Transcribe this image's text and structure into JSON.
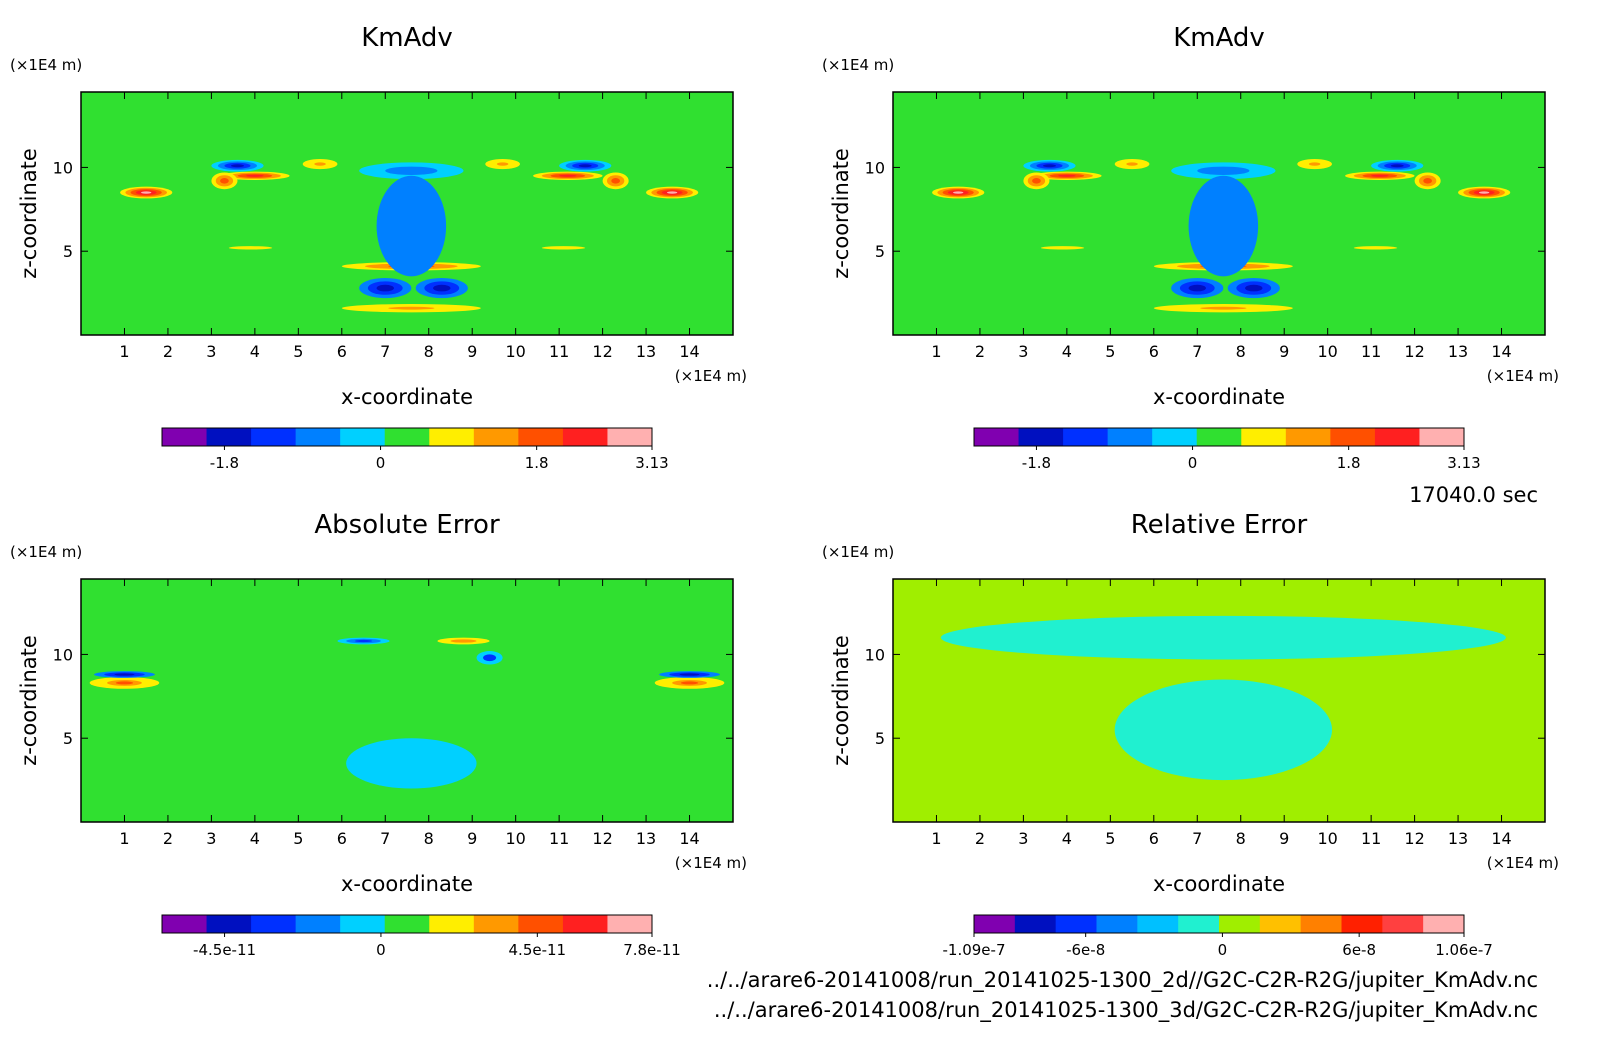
{
  "chart_data": [
    {
      "type": "heatmap",
      "title": "KmAdv",
      "xlabel": "x-coordinate",
      "ylabel": "z-coordinate",
      "x_unit": "(×1E4 m)",
      "y_unit": "(×1E4 m)",
      "xlim": [
        0,
        15
      ],
      "ylim": [
        0,
        14.5
      ],
      "x_ticks": [
        "1",
        "2",
        "3",
        "4",
        "5",
        "6",
        "7",
        "8",
        "9",
        "10",
        "11",
        "12",
        "13",
        "14"
      ],
      "y_ticks": [
        "5",
        "10"
      ],
      "colorbar": {
        "colors": [
          "#8000b0",
          "#0010c0",
          "#0030ff",
          "#0080ff",
          "#00d0ff",
          "#30e030",
          "#ffee00",
          "#ff9900",
          "#ff5000",
          "#ff2020",
          "#ffb0b0"
        ],
        "labels": [
          "-1.8",
          "0",
          "1.8",
          "3.13"
        ],
        "label_values": [
          -1.8,
          0,
          1.8,
          3.13
        ],
        "vmin": -2.52,
        "vmax": 3.13
      },
      "background_value": 0.1,
      "features": [
        {
          "x": 7.0,
          "z": 2.8,
          "value": -1.6,
          "rx": 0.6,
          "rz": 0.6
        },
        {
          "x": 8.3,
          "z": 2.8,
          "value": -1.6,
          "rx": 0.6,
          "rz": 0.6
        },
        {
          "x": 7.6,
          "z": 4.1,
          "value": 1.8,
          "rx": 1.6,
          "rz": 0.25
        },
        {
          "x": 7.6,
          "z": 1.6,
          "value": 1.5,
          "rx": 1.6,
          "rz": 0.25
        },
        {
          "x": 1.5,
          "z": 8.5,
          "value": 2.8,
          "rx": 0.6,
          "rz": 0.35
        },
        {
          "x": 13.6,
          "z": 8.5,
          "value": 2.8,
          "rx": 0.6,
          "rz": 0.35
        },
        {
          "x": 4.0,
          "z": 9.5,
          "value": 2.4,
          "rx": 0.8,
          "rz": 0.25
        },
        {
          "x": 11.2,
          "z": 9.5,
          "value": 2.4,
          "rx": 0.8,
          "rz": 0.25
        },
        {
          "x": 3.3,
          "z": 9.2,
          "value": 1.6,
          "rx": 0.3,
          "rz": 0.5
        },
        {
          "x": 12.3,
          "z": 9.2,
          "value": 1.6,
          "rx": 0.3,
          "rz": 0.5
        },
        {
          "x": 5.5,
          "z": 10.2,
          "value": 1.5,
          "rx": 0.4,
          "rz": 0.3
        },
        {
          "x": 9.7,
          "z": 10.2,
          "value": 1.5,
          "rx": 0.4,
          "rz": 0.3
        },
        {
          "x": 3.6,
          "z": 10.1,
          "value": -1.7,
          "rx": 0.6,
          "rz": 0.35
        },
        {
          "x": 11.6,
          "z": 10.1,
          "value": -1.7,
          "rx": 0.6,
          "rz": 0.35
        },
        {
          "x": 7.6,
          "z": 9.8,
          "value": -0.9,
          "rx": 1.2,
          "rz": 0.5
        },
        {
          "x": 7.6,
          "z": 6.5,
          "value": -0.6,
          "rx": 0.8,
          "rz": 3.0
        },
        {
          "x": 3.9,
          "z": 5.2,
          "value": 1.0,
          "rx": 1.0,
          "rz": 0.2
        },
        {
          "x": 11.1,
          "z": 5.2,
          "value": 1.0,
          "rx": 1.0,
          "rz": 0.2
        }
      ]
    },
    {
      "type": "heatmap",
      "title": "KmAdv",
      "xlabel": "x-coordinate",
      "ylabel": "z-coordinate",
      "x_unit": "(×1E4 m)",
      "y_unit": "(×1E4 m)",
      "xlim": [
        0,
        15
      ],
      "ylim": [
        0,
        14.5
      ],
      "x_ticks": [
        "1",
        "2",
        "3",
        "4",
        "5",
        "6",
        "7",
        "8",
        "9",
        "10",
        "11",
        "12",
        "13",
        "14"
      ],
      "y_ticks": [
        "5",
        "10"
      ],
      "colorbar": {
        "colors": [
          "#8000b0",
          "#0010c0",
          "#0030ff",
          "#0080ff",
          "#00d0ff",
          "#30e030",
          "#ffee00",
          "#ff9900",
          "#ff5000",
          "#ff2020",
          "#ffb0b0"
        ],
        "labels": [
          "-1.8",
          "0",
          "1.8",
          "3.13"
        ],
        "label_values": [
          -1.8,
          0,
          1.8,
          3.13
        ],
        "vmin": -2.52,
        "vmax": 3.13
      },
      "background_value": 0.1,
      "features": [
        {
          "x": 7.0,
          "z": 2.8,
          "value": -1.6,
          "rx": 0.6,
          "rz": 0.6
        },
        {
          "x": 8.3,
          "z": 2.8,
          "value": -1.6,
          "rx": 0.6,
          "rz": 0.6
        },
        {
          "x": 7.6,
          "z": 4.1,
          "value": 1.8,
          "rx": 1.6,
          "rz": 0.25
        },
        {
          "x": 7.6,
          "z": 1.6,
          "value": 1.5,
          "rx": 1.6,
          "rz": 0.25
        },
        {
          "x": 1.5,
          "z": 8.5,
          "value": 2.8,
          "rx": 0.6,
          "rz": 0.35
        },
        {
          "x": 13.6,
          "z": 8.5,
          "value": 2.8,
          "rx": 0.6,
          "rz": 0.35
        },
        {
          "x": 4.0,
          "z": 9.5,
          "value": 2.4,
          "rx": 0.8,
          "rz": 0.25
        },
        {
          "x": 11.2,
          "z": 9.5,
          "value": 2.4,
          "rx": 0.8,
          "rz": 0.25
        },
        {
          "x": 3.3,
          "z": 9.2,
          "value": 1.6,
          "rx": 0.3,
          "rz": 0.5
        },
        {
          "x": 12.3,
          "z": 9.2,
          "value": 1.6,
          "rx": 0.3,
          "rz": 0.5
        },
        {
          "x": 5.5,
          "z": 10.2,
          "value": 1.5,
          "rx": 0.4,
          "rz": 0.3
        },
        {
          "x": 9.7,
          "z": 10.2,
          "value": 1.5,
          "rx": 0.4,
          "rz": 0.3
        },
        {
          "x": 3.6,
          "z": 10.1,
          "value": -1.7,
          "rx": 0.6,
          "rz": 0.35
        },
        {
          "x": 11.6,
          "z": 10.1,
          "value": -1.7,
          "rx": 0.6,
          "rz": 0.35
        },
        {
          "x": 7.6,
          "z": 9.8,
          "value": -0.9,
          "rx": 1.2,
          "rz": 0.5
        },
        {
          "x": 7.6,
          "z": 6.5,
          "value": -0.6,
          "rx": 0.8,
          "rz": 3.0
        },
        {
          "x": 3.9,
          "z": 5.2,
          "value": 1.0,
          "rx": 1.0,
          "rz": 0.2
        },
        {
          "x": 11.1,
          "z": 5.2,
          "value": 1.0,
          "rx": 1.0,
          "rz": 0.2
        }
      ]
    },
    {
      "type": "heatmap",
      "title": "Absolute Error",
      "xlabel": "x-coordinate",
      "ylabel": "z-coordinate",
      "x_unit": "(×1E4 m)",
      "y_unit": "(×1E4 m)",
      "xlim": [
        0,
        15
      ],
      "ylim": [
        0,
        14.5
      ],
      "x_ticks": [
        "1",
        "2",
        "3",
        "4",
        "5",
        "6",
        "7",
        "8",
        "9",
        "10",
        "11",
        "12",
        "13",
        "14"
      ],
      "y_ticks": [
        "5",
        "10"
      ],
      "colorbar": {
        "colors": [
          "#8000b0",
          "#0010c0",
          "#0030ff",
          "#0080ff",
          "#00d0ff",
          "#30e030",
          "#ffee00",
          "#ff9900",
          "#ff5000",
          "#ff2020",
          "#ffb0b0"
        ],
        "labels": [
          "-4.5e-11",
          "0",
          "4.5e-11",
          "7.8e-11"
        ],
        "label_values": [
          -4.5e-11,
          0,
          4.5e-11,
          7.8e-11
        ],
        "vmin": -6.3e-11,
        "vmax": 7.8e-11
      },
      "background_value": 2e-12,
      "features": [
        {
          "x": 1.0,
          "z": 8.3,
          "value": 5e-11,
          "rx": 0.8,
          "rz": 0.35
        },
        {
          "x": 14.0,
          "z": 8.3,
          "value": 5e-11,
          "rx": 0.8,
          "rz": 0.35
        },
        {
          "x": 1.0,
          "z": 8.8,
          "value": -4e-11,
          "rx": 0.7,
          "rz": 0.2
        },
        {
          "x": 14.0,
          "z": 8.8,
          "value": -4e-11,
          "rx": 0.7,
          "rz": 0.2
        },
        {
          "x": 6.5,
          "z": 10.8,
          "value": -3.5e-11,
          "rx": 0.6,
          "rz": 0.2
        },
        {
          "x": 8.8,
          "z": 10.8,
          "value": 3e-11,
          "rx": 0.6,
          "rz": 0.2
        },
        {
          "x": 9.4,
          "z": 9.8,
          "value": -2.5e-11,
          "rx": 0.3,
          "rz": 0.4
        },
        {
          "x": 7.6,
          "z": 3.5,
          "value": -8e-12,
          "rx": 1.5,
          "rz": 1.5
        }
      ]
    },
    {
      "type": "heatmap",
      "title": "Relative Error",
      "xlabel": "x-coordinate",
      "ylabel": "z-coordinate",
      "x_unit": "(×1E4 m)",
      "y_unit": "(×1E4 m)",
      "xlim": [
        0,
        15
      ],
      "ylim": [
        0,
        14.5
      ],
      "x_ticks": [
        "1",
        "2",
        "3",
        "4",
        "5",
        "6",
        "7",
        "8",
        "9",
        "10",
        "11",
        "12",
        "13",
        "14"
      ],
      "y_ticks": [
        "5",
        "10"
      ],
      "colorbar": {
        "colors": [
          "#8000b0",
          "#0010c0",
          "#0030ff",
          "#0080ff",
          "#00c0ff",
          "#20f0d0",
          "#a0ee00",
          "#ffc000",
          "#ff8000",
          "#ff2000",
          "#ff4040",
          "#ffb0b0"
        ],
        "labels": [
          "-1.09e-7",
          "-6e-8",
          "0",
          "6e-8",
          "1.06e-7"
        ],
        "label_values": [
          -1.09e-07,
          -6e-08,
          0,
          6e-08,
          1.06e-07
        ],
        "vmin": -1.09e-07,
        "vmax": 1.06e-07
      },
      "background_value": 1e-08,
      "features": [
        {
          "x": 7.6,
          "z": 5.5,
          "value": -1e-08,
          "rx": 2.5,
          "rz": 3.0
        },
        {
          "x": 7.6,
          "z": 11.0,
          "value": -1e-08,
          "rx": 6.5,
          "rz": 1.3
        }
      ]
    }
  ],
  "timestamp": "17040.0 sec",
  "file_paths": [
    "../../arare6-20141008/run_20141025-1300_2d//G2C-C2R-R2G/jupiter_KmAdv.nc",
    "../../arare6-20141008/run_20141025-1300_3d/G2C-C2R-R2G/jupiter_KmAdv.nc"
  ]
}
